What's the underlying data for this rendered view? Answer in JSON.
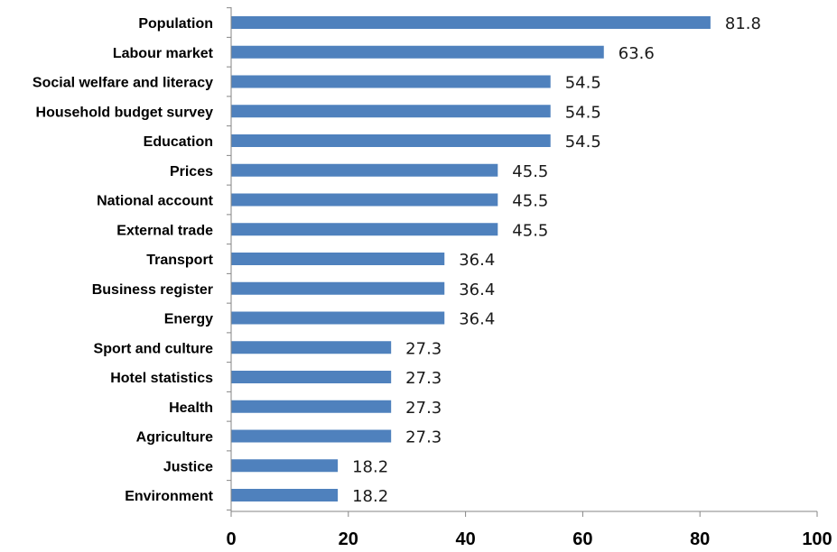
{
  "chart_data": {
    "type": "bar",
    "orientation": "horizontal",
    "categories": [
      "Population",
      "Labour market",
      "Social welfare and literacy",
      "Household budget survey",
      "Education",
      "Prices",
      "National account",
      "External trade",
      "Transport",
      "Business register",
      "Energy",
      "Sport and culture",
      "Hotel statistics",
      "Health",
      "Agriculture",
      "Justice",
      "Environment"
    ],
    "values": [
      81.8,
      63.6,
      54.5,
      54.5,
      54.5,
      45.5,
      45.5,
      45.5,
      36.4,
      36.4,
      36.4,
      27.3,
      27.3,
      27.3,
      27.3,
      18.2,
      18.2
    ],
    "value_labels": [
      "81.8",
      "63.6",
      "54.5",
      "54.5",
      "54.5",
      "45.5",
      "45.5",
      "45.5",
      "36.4",
      "36.4",
      "36.4",
      "27.3",
      "27.3",
      "27.3",
      "27.3",
      "18.2",
      "18.2"
    ],
    "xlim": [
      0,
      100
    ],
    "xticks": [
      "0",
      "20",
      "40",
      "60",
      "80",
      "100"
    ],
    "title": "",
    "xlabel": "",
    "ylabel": "",
    "grid": false,
    "legend": "none",
    "bar_color": "#4f81bd"
  }
}
